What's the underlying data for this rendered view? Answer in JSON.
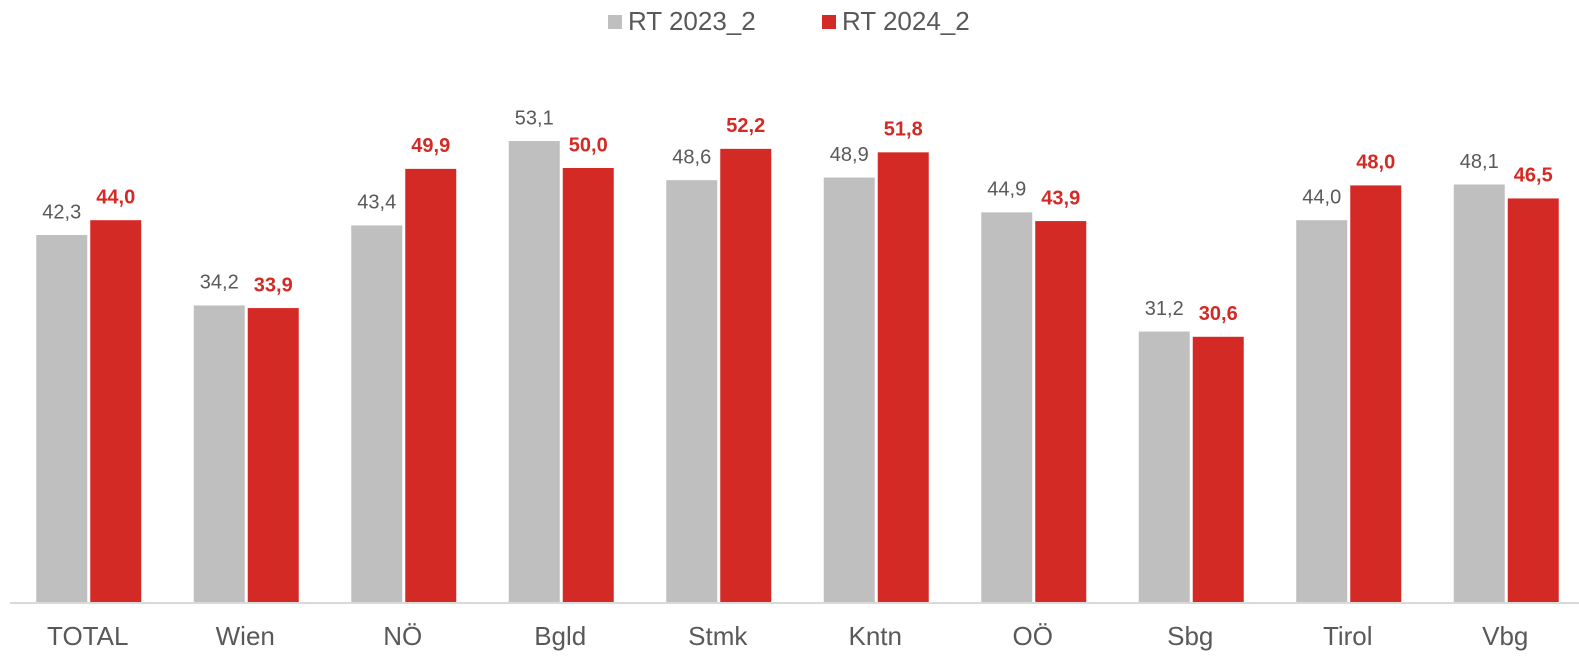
{
  "chart_data": {
    "type": "bar",
    "categories": [
      "TOTAL",
      "Wien",
      "NÖ",
      "Bgld",
      "Stmk",
      "Kntn",
      "OÖ",
      "Sbg",
      "Tirol",
      "Vbg"
    ],
    "series": [
      {
        "name": "RT 2023_2",
        "color": "#bfbfbf",
        "label_color": "#595959",
        "label_bold": false,
        "values": [
          42.3,
          34.2,
          43.4,
          53.1,
          48.6,
          48.9,
          44.9,
          31.2,
          44.0,
          48.1
        ],
        "value_labels": [
          "42,3",
          "34,2",
          "43,4",
          "53,1",
          "48,6",
          "48,9",
          "44,9",
          "31,2",
          "44,0",
          "48,1"
        ]
      },
      {
        "name": "RT 2024_2",
        "color": "#d42a25",
        "label_color": "#d42a25",
        "label_bold": true,
        "values": [
          44.0,
          33.9,
          49.9,
          50.0,
          52.2,
          51.8,
          43.9,
          30.6,
          48.0,
          46.5
        ],
        "value_labels": [
          "44,0",
          "33,9",
          "49,9",
          "50,0",
          "52,2",
          "51,8",
          "43,9",
          "30,6",
          "48,0",
          "46,5"
        ]
      }
    ],
    "ylim": [
      0,
      60
    ],
    "legend": "top"
  }
}
